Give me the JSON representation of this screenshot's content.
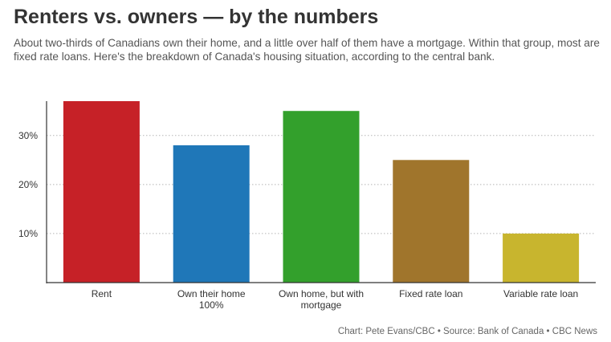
{
  "title": "Renters vs. owners — by the numbers",
  "subtitle": "About two-thirds of Canadians own their home, and a little over half of them have a mortgage. Within that group, most are fixed rate loans. Here's the breakdown of Canada's housing situation, according to the central bank.",
  "footer": "Chart: Pete Evans/CBC • Source: Bank of Canada • CBC News",
  "chart_data": {
    "type": "bar",
    "categories": [
      [
        "Rent"
      ],
      [
        "Own their home",
        "100%"
      ],
      [
        "Own home, but with",
        "mortgage"
      ],
      [
        "Fixed rate loan"
      ],
      [
        "Variable rate loan"
      ]
    ],
    "values": [
      37,
      28,
      35,
      25,
      10
    ],
    "colors": [
      "#c62127",
      "#1f77b8",
      "#33a02c",
      "#a0752c",
      "#c8b52e"
    ],
    "yticks": [
      10,
      20,
      30
    ],
    "ytick_labels": [
      "10%",
      "20%",
      "30%"
    ],
    "ylim": [
      0,
      37
    ],
    "grid": true,
    "legend": "none"
  }
}
